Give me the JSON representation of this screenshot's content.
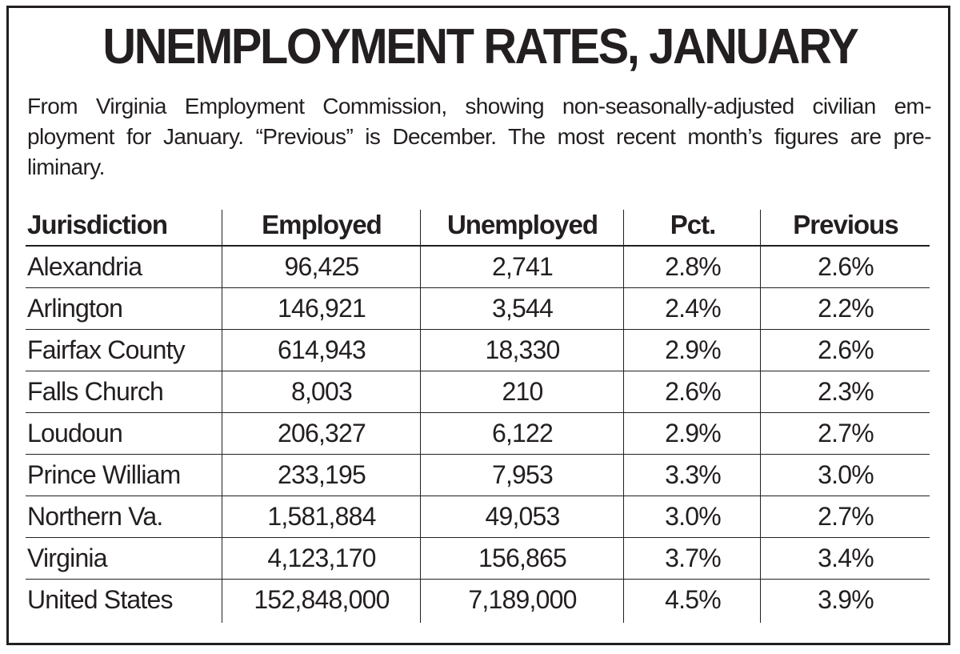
{
  "chart_data": {
    "type": "table",
    "title": "UNEMPLOYMENT RATES, JANUARY",
    "subtitle_lines": [
      "From Virginia Employment Commission, showing non-seasonally-adjusted civilian em-",
      "ployment for January. “Previous” is December. The most recent month’s figures are pre-",
      "liminary."
    ],
    "columns": [
      "Jurisdiction",
      "Employed",
      "Unemployed",
      "Pct.",
      "Previous"
    ],
    "rows": [
      [
        "Alexandria",
        "96,425",
        "2,741",
        "2.8%",
        "2.6%"
      ],
      [
        "Arlington",
        "146,921",
        "3,544",
        "2.4%",
        "2.2%"
      ],
      [
        "Fairfax County",
        "614,943",
        "18,330",
        "2.9%",
        "2.6%"
      ],
      [
        "Falls Church",
        "8,003",
        "210",
        "2.6%",
        "2.3%"
      ],
      [
        "Loudoun",
        "206,327",
        "6,122",
        "2.9%",
        "2.7%"
      ],
      [
        "Prince William",
        "233,195",
        "7,953",
        "3.3%",
        "3.0%"
      ],
      [
        "Northern Va.",
        "1,581,884",
        "49,053",
        "3.0%",
        "2.7%"
      ],
      [
        "Virginia",
        "4,123,170",
        "156,865",
        "3.7%",
        "3.4%"
      ],
      [
        "United States",
        "152,848,000",
        "7,189,000",
        "4.5%",
        "3.9%"
      ]
    ],
    "grid": true
  },
  "colors": {
    "ink": "#231f20",
    "background": "#ffffff"
  }
}
